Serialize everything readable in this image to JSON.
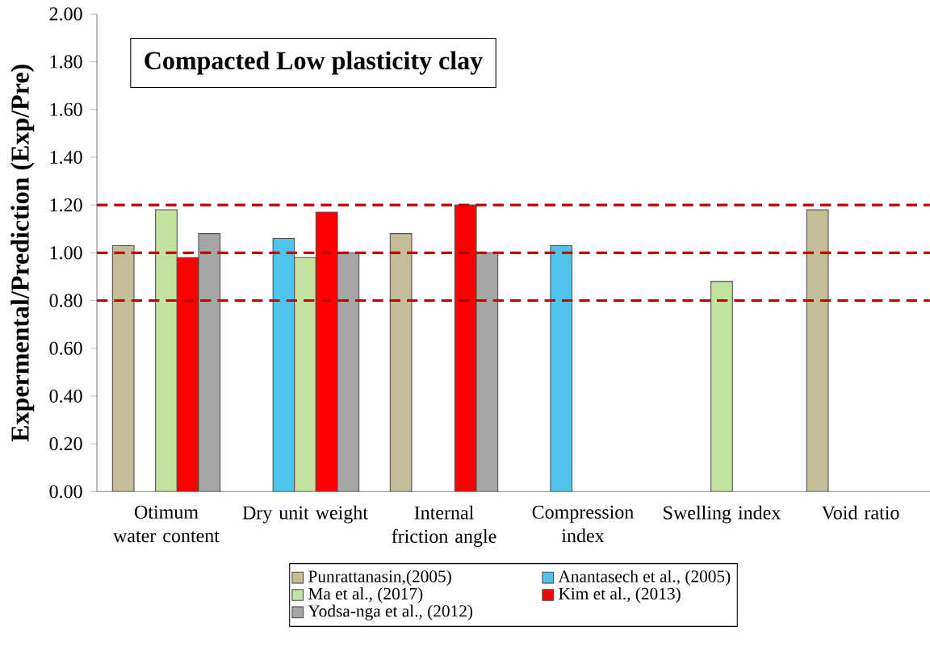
{
  "chart_data": {
    "type": "bar",
    "ylabel": "Expermental/Prediction (Exp/Pre)",
    "annotations": [
      "Compacted Low plasticity clay"
    ],
    "categories": [
      "Otimum water content",
      "Dry unit weight",
      "Internal friction angle",
      "Compression index",
      "Swelling index",
      "Void ratio"
    ],
    "series": [
      {
        "name": "Punrattanasin,(2005)",
        "color": "#c4bd97",
        "values": [
          1.03,
          null,
          1.08,
          null,
          null,
          1.18
        ]
      },
      {
        "name": "Anantasech et al., (2005)",
        "color": "#4fc3ee",
        "values": [
          null,
          1.06,
          null,
          1.03,
          null,
          null
        ]
      },
      {
        "name": "Ma et al., (2017)",
        "color": "#c3e2a0",
        "values": [
          1.18,
          0.98,
          null,
          null,
          0.88,
          null
        ]
      },
      {
        "name": "Kim et al., (2013)",
        "color": "#ff0000",
        "values": [
          0.98,
          1.17,
          1.2,
          null,
          null,
          null
        ]
      },
      {
        "name": "Yodsa-nga et al., (2012)",
        "color": "#a6a6a6",
        "values": [
          1.08,
          1.0,
          1.0,
          null,
          null,
          null
        ]
      }
    ],
    "ylim": [
      0,
      2
    ],
    "yticks": [
      {
        "value": 0,
        "label": "0.00"
      },
      {
        "value": 0.2,
        "label": "0.20"
      },
      {
        "value": 0.4,
        "label": "0.40"
      },
      {
        "value": 0.6,
        "label": "0.60"
      },
      {
        "value": 0.8,
        "label": "0.80"
      },
      {
        "value": 1.0,
        "label": "1.00"
      },
      {
        "value": 1.2,
        "label": "1.20"
      },
      {
        "value": 1.4,
        "label": "1.40"
      },
      {
        "value": 1.6,
        "label": "1.60"
      },
      {
        "value": 1.8,
        "label": "1.80"
      },
      {
        "value": 2.0,
        "label": "2.00"
      }
    ],
    "ref_lines": [
      {
        "axis": "y",
        "value": 0.8,
        "color": "#c00000",
        "line_style": "dashed"
      },
      {
        "axis": "y",
        "value": 1.0,
        "color": "#c00000",
        "line_style": "dashed"
      },
      {
        "axis": "y",
        "value": 1.2,
        "color": "#c00000",
        "line_style": "dashed"
      }
    ],
    "legend": "bottom",
    "grid": false
  }
}
